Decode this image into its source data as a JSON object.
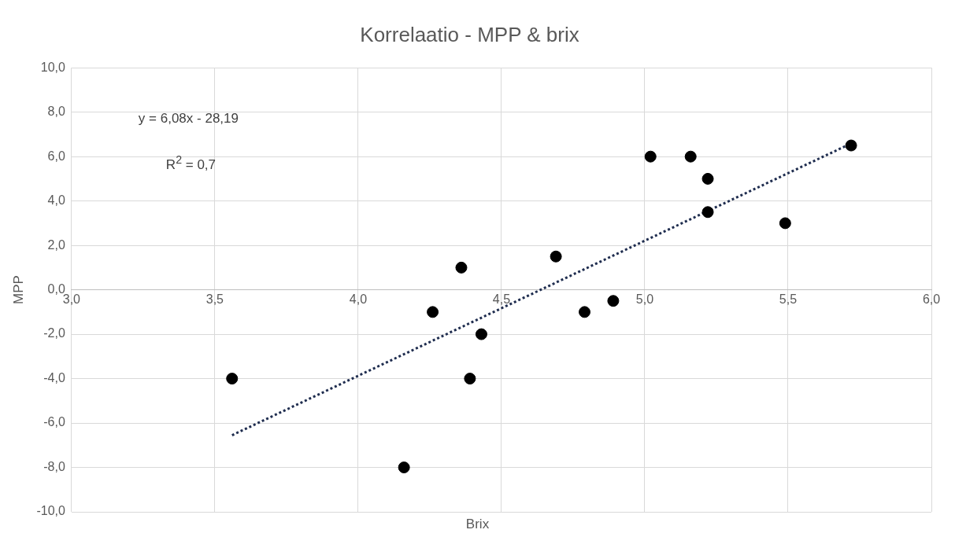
{
  "chart_data": {
    "type": "scatter",
    "title": "Korrelaatio - MPP & brix",
    "xlabel": "Brix",
    "ylabel": "MPP",
    "x": [
      3.56,
      4.16,
      4.26,
      4.36,
      4.39,
      4.43,
      4.69,
      4.79,
      4.89,
      5.02,
      5.16,
      5.22,
      5.22,
      5.49,
      5.72
    ],
    "series": [
      {
        "color": "#000000",
        "values": [
          -4,
          -8,
          -1,
          1,
          -4,
          -2,
          1.5,
          -1,
          -0.5,
          6,
          6,
          5,
          3.5,
          3,
          6.5
        ]
      },
      {
        "type": "line",
        "color": "#1f2d4f",
        "line_style": "dotted",
        "marker": "none",
        "x": [
          3.56,
          5.72
        ],
        "values": [
          -6.55,
          6.59
        ]
      }
    ],
    "xlim": [
      3,
      6
    ],
    "ylim": [
      -10,
      10
    ],
    "xticks": [
      {
        "value": 3,
        "label": "3,0"
      },
      {
        "value": 3.5,
        "label": "3,5"
      },
      {
        "value": 4,
        "label": "4,0"
      },
      {
        "value": 4.5,
        "label": "4,5"
      },
      {
        "value": 5,
        "label": "5,0"
      },
      {
        "value": 5.5,
        "label": "5,5"
      },
      {
        "value": 6,
        "label": "6,0"
      }
    ],
    "yticks": [
      {
        "value": -10,
        "label": "-10,0"
      },
      {
        "value": -8,
        "label": "-8,0"
      },
      {
        "value": -6,
        "label": "-6,0"
      },
      {
        "value": -4,
        "label": "-4,0"
      },
      {
        "value": -2,
        "label": "-2,0"
      },
      {
        "value": 0,
        "label": "0,0"
      },
      {
        "value": 2,
        "label": "2,0"
      },
      {
        "value": 4,
        "label": "4,0"
      },
      {
        "value": 6,
        "label": "6,0"
      },
      {
        "value": 8,
        "label": "8,0"
      },
      {
        "value": 10,
        "label": "10,0"
      }
    ],
    "annotations": [
      "y = 6,08x - 28,19",
      "R$^{2}$ = 0,7"
    ],
    "grid": true,
    "legend": false,
    "marker": "circle"
  }
}
